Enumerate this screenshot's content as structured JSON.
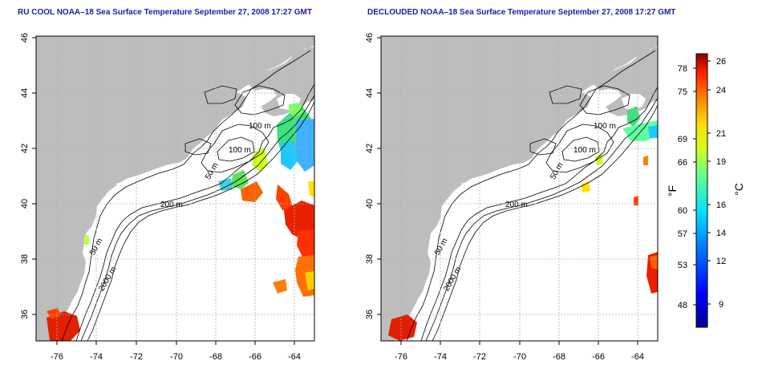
{
  "panels": [
    {
      "title": "RU COOL NOAA–18 Sea Surface Temperature September 27, 2008 17:27 GMT",
      "contour_labels": [
        "100 m",
        "100 m",
        "50 m",
        "200 m",
        "50 m",
        "2000 m"
      ]
    },
    {
      "title": "DECLOUDED NOAA–18 Sea Surface Temperature September 27, 2008 17:27 GMT",
      "contour_labels": [
        "100 m",
        "100 m",
        "50 m",
        "200 m",
        "50 m",
        "2000 m"
      ]
    }
  ],
  "axes": {
    "x_ticks": [
      "-76",
      "-74",
      "-72",
      "-70",
      "-68",
      "-66",
      "-64"
    ],
    "y_ticks": [
      "46",
      "44",
      "42",
      "40",
      "38",
      "36"
    ]
  },
  "colorbar": {
    "fahrenheit_unit": "°F",
    "celsius_unit": "°C",
    "fahrenheit_ticks": [
      "78",
      "75",
      "69",
      "66",
      "60",
      "57",
      "53",
      "48"
    ],
    "celsius_ticks": [
      "26",
      "24",
      "21",
      "19",
      "16",
      "14",
      "12",
      "9"
    ]
  },
  "colors": {
    "land": "#bdbdbd",
    "ocean": "#ffffff",
    "title": "#1c1ca8",
    "grid": "#b0b0b0"
  }
}
